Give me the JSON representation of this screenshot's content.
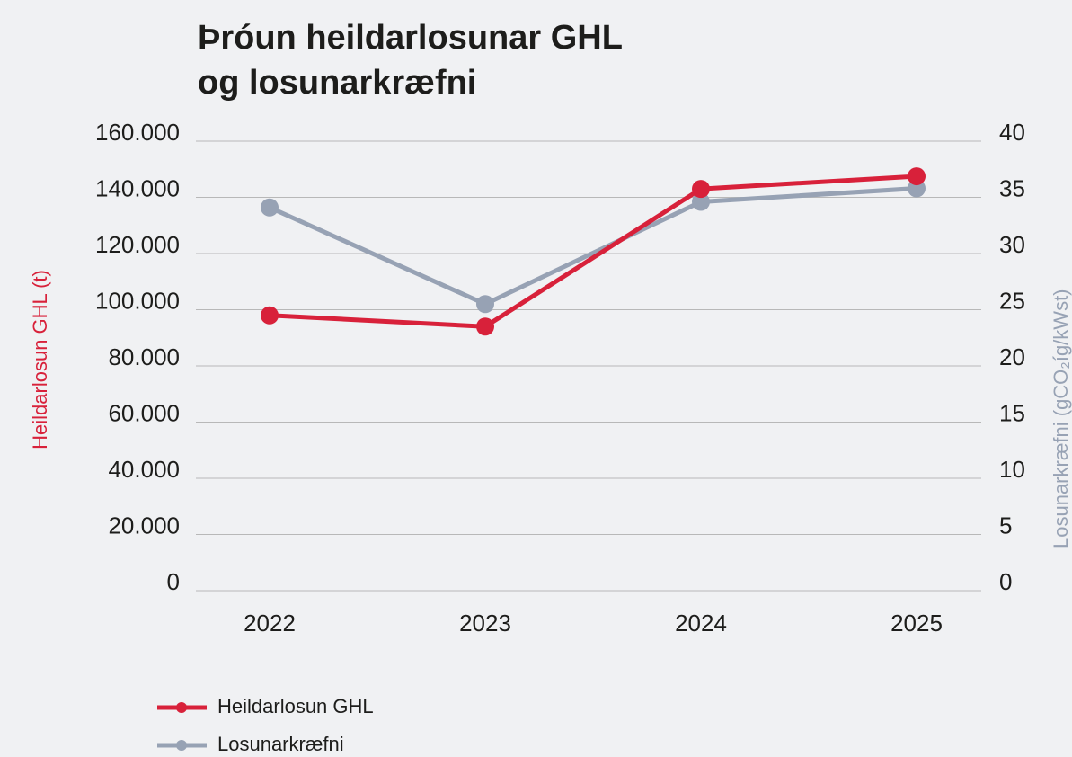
{
  "chart_data": {
    "type": "line",
    "title": [
      "Þróun heildarlosunar GHL",
      "og losunarkræfni"
    ],
    "categories": [
      "2022",
      "2023",
      "2024",
      "2025"
    ],
    "y_label": "Heildarlosun GHL (t)",
    "y2_label": "Losunarkræfni (gCO₂íg/kWst)",
    "ylim": [
      0,
      160000
    ],
    "yticks": [
      0,
      {
        "value": 20000,
        "label": "20.000"
      },
      {
        "value": 40000,
        "label": "40.000"
      },
      {
        "value": 60000,
        "label": "60.000"
      },
      {
        "value": 80000,
        "label": "80.000"
      },
      {
        "value": 100000,
        "label": "100.000"
      },
      {
        "value": 120000,
        "label": "120.000"
      },
      {
        "value": 140000,
        "label": "140.000"
      },
      {
        "value": 160000,
        "label": "160.000"
      }
    ],
    "y2lim": [
      0,
      40
    ],
    "y2ticks": [
      0,
      5,
      10,
      15,
      20,
      25,
      30,
      35,
      40
    ],
    "grid": true,
    "legend": "bottom-left",
    "series": [
      {
        "name": "Heildarlosun GHL",
        "color": "#d8213a",
        "values": [
          98000,
          94000,
          143000,
          147500
        ]
      },
      {
        "name": "Losunarkræfni",
        "color": "#97a2b4",
        "axis": "y2",
        "values": [
          34.1,
          25.5,
          34.6,
          35.8
        ]
      }
    ]
  }
}
